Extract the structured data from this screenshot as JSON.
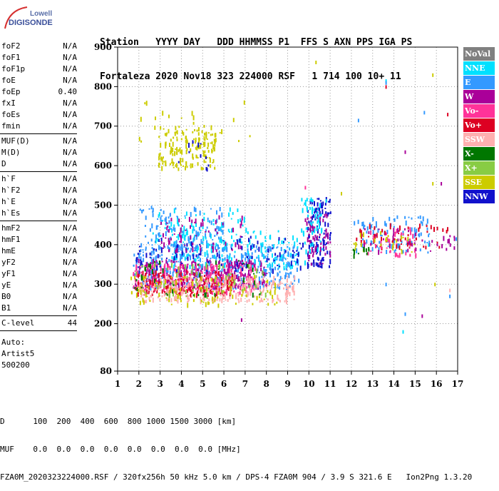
{
  "logo": {
    "top": "Lowell",
    "bottom": "DIGISONDE"
  },
  "header": {
    "line1": "Station   YYYY DAY   DDD HHMMSS P1  FFS S AXN PPS IGA PS",
    "line2": "Fortaleza 2020 Nov18 323 224000 RSF   1 714 100 10+ 11"
  },
  "params": {
    "group1": [
      {
        "name": "foF2",
        "value": "N/A"
      },
      {
        "name": "foF1",
        "value": "N/A"
      },
      {
        "name": "foF1p",
        "value": "N/A"
      },
      {
        "name": "foE",
        "value": "N/A"
      },
      {
        "name": "foEp",
        "value": "0.40"
      },
      {
        "name": "fxI",
        "value": "N/A"
      },
      {
        "name": "foEs",
        "value": "N/A"
      },
      {
        "name": "fmin",
        "value": "N/A"
      }
    ],
    "group2": [
      {
        "name": "MUF(D)",
        "value": "N/A"
      },
      {
        "name": "M(D)",
        "value": "N/A"
      },
      {
        "name": "D",
        "value": "N/A"
      }
    ],
    "group3": [
      {
        "name": "h`F",
        "value": "N/A"
      },
      {
        "name": "h`F2",
        "value": "N/A"
      },
      {
        "name": "h`E",
        "value": "N/A"
      },
      {
        "name": "h`Es",
        "value": "N/A"
      }
    ],
    "group4": [
      {
        "name": "hmF2",
        "value": "N/A"
      },
      {
        "name": "hmF1",
        "value": "N/A"
      },
      {
        "name": "hmE",
        "value": "N/A"
      },
      {
        "name": "yF2",
        "value": "N/A"
      },
      {
        "name": "yF1",
        "value": "N/A"
      },
      {
        "name": "yE",
        "value": "N/A"
      },
      {
        "name": "B0",
        "value": "N/A"
      },
      {
        "name": "B1",
        "value": "N/A"
      }
    ],
    "clevel": {
      "name": "C-level",
      "value": "44"
    },
    "auto": [
      "Auto:",
      "Artist5",
      "500200"
    ]
  },
  "legend": [
    {
      "name": "NoVal",
      "color": "#808080"
    },
    {
      "name": "NNE",
      "color": "#00e0ff"
    },
    {
      "name": "E",
      "color": "#3399ff"
    },
    {
      "name": "W",
      "color": "#aa0099"
    },
    {
      "name": "Vo-",
      "color": "#ff3399"
    },
    {
      "name": "Vo+",
      "color": "#dd0022"
    },
    {
      "name": "SSW",
      "color": "#ffb0b0"
    },
    {
      "name": "X-",
      "color": "#007700"
    },
    {
      "name": "X+",
      "color": "#88cc44"
    },
    {
      "name": "SSE",
      "color": "#cccc00"
    },
    {
      "name": "NNW",
      "color": "#1111cc"
    }
  ],
  "footer": {
    "line1": "D      100  200  400  600  800 1000 1500 3000 [km]",
    "line2": "MUF    0.0  0.0  0.0  0.0  0.0  0.0  0.0  0.0 [MHz]",
    "line3": "FZA0M_2020323224000.RSF / 320fx256h 50 kHz 5.0 km / DPS-4 FZA0M 904 / 3.9 S 321.6 E   Ion2Png 1.3.20"
  },
  "chart_data": {
    "type": "scatter",
    "title": "",
    "xlabel": "",
    "ylabel": "",
    "xlim": [
      1,
      17
    ],
    "ylim": [
      80,
      900
    ],
    "xticks": [
      1,
      2,
      3,
      4,
      5,
      6,
      7,
      8,
      9,
      10,
      11,
      12,
      13,
      14,
      15,
      16,
      17
    ],
    "yticks": [
      80,
      200,
      300,
      400,
      500,
      600,
      700,
      800,
      900
    ],
    "grid": true,
    "clusters": [
      {
        "series": "SSE",
        "x": [
          2.9,
          5.6
        ],
        "y": [
          590,
          700
        ],
        "n": 170
      },
      {
        "series": "NNW",
        "x": [
          3.8,
          5.5
        ],
        "y": [
          580,
          670
        ],
        "n": 12
      },
      {
        "series": "E",
        "x": [
          1.7,
          9.5
        ],
        "y": [
          290,
          400
        ],
        "n": 420
      },
      {
        "series": "W",
        "x": [
          1.8,
          8.0
        ],
        "y": [
          290,
          360
        ],
        "n": 260
      },
      {
        "series": "Vo-",
        "x": [
          1.7,
          7.5
        ],
        "y": [
          275,
          350
        ],
        "n": 240
      },
      {
        "series": "Vo+",
        "x": [
          1.7,
          6.5
        ],
        "y": [
          270,
          330
        ],
        "n": 170
      },
      {
        "series": "SSW",
        "x": [
          2.0,
          9.3
        ],
        "y": [
          255,
          320
        ],
        "n": 260
      },
      {
        "series": "NNE",
        "x": [
          3.5,
          9.8
        ],
        "y": [
          340,
          440
        ],
        "n": 160
      },
      {
        "series": "NNW",
        "x": [
          1.7,
          9.7
        ],
        "y": [
          330,
          420
        ],
        "n": 100
      },
      {
        "series": "SSE",
        "x": [
          1.6,
          8.5
        ],
        "y": [
          245,
          320
        ],
        "n": 110
      },
      {
        "series": "X+",
        "x": [
          1.7,
          8.0
        ],
        "y": [
          260,
          350
        ],
        "n": 60
      },
      {
        "series": "X-",
        "x": [
          1.7,
          8.0
        ],
        "y": [
          270,
          360
        ],
        "n": 40
      },
      {
        "series": "E",
        "x": [
          2.0,
          6.0
        ],
        "y": [
          390,
          495
        ],
        "n": 120
      },
      {
        "series": "NNE",
        "x": [
          2.5,
          7.0
        ],
        "y": [
          400,
          490
        ],
        "n": 60
      },
      {
        "series": "W",
        "x": [
          3.0,
          7.0
        ],
        "y": [
          380,
          470
        ],
        "n": 70
      },
      {
        "series": "NNW",
        "x": [
          9.9,
          11.0
        ],
        "y": [
          340,
          520
        ],
        "n": 120
      },
      {
        "series": "W",
        "x": [
          9.8,
          11.0
        ],
        "y": [
          350,
          480
        ],
        "n": 60
      },
      {
        "series": "NNE",
        "x": [
          9.6,
          10.8
        ],
        "y": [
          380,
          520
        ],
        "n": 50
      },
      {
        "series": "E",
        "x": [
          12.1,
          15.7
        ],
        "y": [
          380,
          470
        ],
        "n": 90
      },
      {
        "series": "Vo+",
        "x": [
          12.2,
          16.5
        ],
        "y": [
          390,
          450
        ],
        "n": 60
      },
      {
        "series": "Vo-",
        "x": [
          12.5,
          15.0
        ],
        "y": [
          370,
          440
        ],
        "n": 40
      },
      {
        "series": "W",
        "x": [
          12.5,
          16.9
        ],
        "y": [
          380,
          440
        ],
        "n": 40
      },
      {
        "series": "SSE",
        "x": [
          12.0,
          15.0
        ],
        "y": [
          380,
          430
        ],
        "n": 25
      },
      {
        "series": "X-",
        "x": [
          12.0,
          12.8
        ],
        "y": [
          370,
          390
        ],
        "n": 10
      },
      {
        "series": "SSE",
        "x": [
          2.0,
          7.3
        ],
        "y": [
          660,
          760
        ],
        "n": 20
      }
    ],
    "points": [
      {
        "series": "NNE",
        "x": 13.6,
        "y": 815
      },
      {
        "series": "E",
        "x": 13.6,
        "y": 810
      },
      {
        "series": "Vo+",
        "x": 13.6,
        "y": 800
      },
      {
        "series": "SSE",
        "x": 15.8,
        "y": 830
      },
      {
        "series": "SSE",
        "x": 10.3,
        "y": 862
      },
      {
        "series": "Vo+",
        "x": 16.5,
        "y": 730
      },
      {
        "series": "E",
        "x": 15.4,
        "y": 735
      },
      {
        "series": "E",
        "x": 12.3,
        "y": 715
      },
      {
        "series": "W",
        "x": 14.5,
        "y": 635
      },
      {
        "series": "SSE",
        "x": 15.8,
        "y": 555
      },
      {
        "series": "W",
        "x": 16.2,
        "y": 555
      },
      {
        "series": "E",
        "x": 14.5,
        "y": 225
      },
      {
        "series": "W",
        "x": 15.3,
        "y": 220
      },
      {
        "series": "NNE",
        "x": 14.4,
        "y": 180
      },
      {
        "series": "E",
        "x": 16.6,
        "y": 270
      },
      {
        "series": "SSW",
        "x": 16.6,
        "y": 285
      },
      {
        "series": "W",
        "x": 6.8,
        "y": 210
      },
      {
        "series": "E",
        "x": 13.6,
        "y": 300
      },
      {
        "series": "SSE",
        "x": 15.9,
        "y": 300
      },
      {
        "series": "SSE",
        "x": 11.5,
        "y": 530
      },
      {
        "series": "NNE",
        "x": 15.6,
        "y": 400
      },
      {
        "series": "E",
        "x": 16.9,
        "y": 415
      },
      {
        "series": "Vo-",
        "x": 9.8,
        "y": 545
      }
    ]
  }
}
